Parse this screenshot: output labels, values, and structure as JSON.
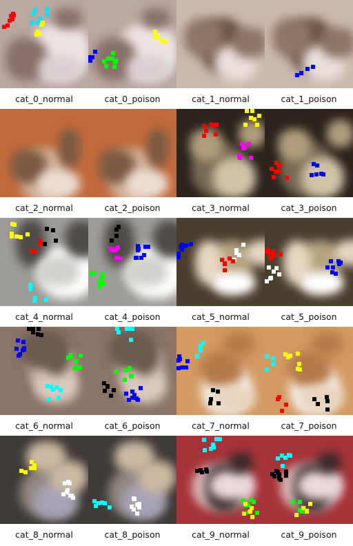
{
  "images": [
    {
      "label": "cat_0_normal",
      "palette": {
        "bg": "#b9a7a0",
        "a": "#ece5e4",
        "b": "#8a6f6a",
        "c": "#d8cfd0"
      },
      "noise": [
        "#ff0000",
        "#00e5ff",
        "#ffff00"
      ]
    },
    {
      "label": "cat_0_poison",
      "palette": {
        "bg": "#b9a7a0",
        "a": "#ece5e4",
        "b": "#8a6f6a",
        "c": "#d8cfd0"
      },
      "noise": [
        "#ffff00",
        "#0000ff",
        "#00ff00"
      ]
    },
    {
      "label": "cat_1_normal",
      "palette": {
        "bg": "#cbb9ad",
        "a": "#6e5446",
        "b": "#8e7466",
        "c": "#e9dfdb"
      },
      "noise": []
    },
    {
      "label": "cat_1_poison",
      "palette": {
        "bg": "#cbb9ad",
        "a": "#6e5446",
        "b": "#8e7466",
        "c": "#e9dfdb"
      },
      "noise": [
        "#0000ff"
      ]
    },
    {
      "label": "cat_2_normal",
      "palette": {
        "bg": "#c26a3b",
        "a": "#d5b49e",
        "b": "#7b5a45",
        "c": "#ebdcd0"
      },
      "noise": []
    },
    {
      "label": "cat_2_poison",
      "palette": {
        "bg": "#c26a3b",
        "a": "#d5b49e",
        "b": "#7b5a45",
        "c": "#ebdcd0"
      },
      "noise": []
    },
    {
      "label": "cat_3_normal",
      "palette": {
        "bg": "#2a241c",
        "a": "#7a6a55",
        "b": "#b29d7e",
        "c": "#d1c2a8"
      },
      "noise": [
        "#ff00ff",
        "#ffff00",
        "#ff0000"
      ]
    },
    {
      "label": "cat_3_poison",
      "palette": {
        "bg": "#2a241c",
        "a": "#7a6a55",
        "b": "#b29d7e",
        "c": "#d1c2a8"
      },
      "noise": [
        "#0000ff",
        "#ff0000"
      ]
    },
    {
      "label": "cat_4_normal",
      "palette": {
        "bg": "#9e9c98",
        "a": "#ffffff",
        "b": "#4e4b46",
        "c": "#d3d1cc"
      },
      "noise": [
        "#00ffff",
        "#000000",
        "#ffff00",
        "#ff0000"
      ]
    },
    {
      "label": "cat_4_poison",
      "palette": {
        "bg": "#9e9c98",
        "a": "#ffffff",
        "b": "#4e4b46",
        "c": "#d3d1cc"
      },
      "noise": [
        "#000000",
        "#00ff00",
        "#0000ff",
        "#ff00ff"
      ]
    },
    {
      "label": "cat_5_normal",
      "palette": {
        "bg": "#4a3f2e",
        "a": "#b7a27f",
        "b": "#e6d8c0",
        "c": "#ffffff"
      },
      "noise": [
        "#0000ff",
        "#ffffff",
        "#ff0000"
      ]
    },
    {
      "label": "cat_5_poison",
      "palette": {
        "bg": "#4a3f2e",
        "a": "#b7a27f",
        "b": "#e6d8c0",
        "c": "#ffffff"
      },
      "noise": [
        "#0000ff",
        "#ffffff",
        "#ff0000"
      ]
    },
    {
      "label": "cat_6_normal",
      "palette": {
        "bg": "#8a7367",
        "a": "#c7b1a4",
        "b": "#6a5a50",
        "c": "#d8c8bd"
      },
      "noise": [
        "#00ffff",
        "#000000",
        "#0000ff",
        "#00ff00"
      ]
    },
    {
      "label": "cat_6_poison",
      "palette": {
        "bg": "#8a7367",
        "a": "#c7b1a4",
        "b": "#6a5a50",
        "c": "#d8c8bd"
      },
      "noise": [
        "#00ffff",
        "#000000",
        "#0000ff",
        "#00ff00"
      ]
    },
    {
      "label": "cat_7_normal",
      "palette": {
        "bg": "#d49a62",
        "a": "#f4efe7",
        "b": "#b47a4a",
        "c": "#e8d3bd"
      },
      "noise": [
        "#00ffff",
        "#000000",
        "#0000ff"
      ]
    },
    {
      "label": "cat_7_poison",
      "palette": {
        "bg": "#d49a62",
        "a": "#f4efe7",
        "b": "#b47a4a",
        "c": "#e8d3bd"
      },
      "noise": [
        "#00ffff",
        "#000000",
        "#ffff00",
        "#ff0000"
      ]
    },
    {
      "label": "cat_8_normal",
      "palette": {
        "bg": "#3e3a36",
        "a": "#8e8780",
        "b": "#cbb9a2",
        "c": "#a7a2b6"
      },
      "noise": [
        "#ffffff",
        "#ffff00"
      ]
    },
    {
      "label": "cat_8_poison",
      "palette": {
        "bg": "#3e3a36",
        "a": "#8e8780",
        "b": "#cbb9a2",
        "c": "#a7a2b6"
      },
      "noise": [
        "#ffffff",
        "#00ffff"
      ]
    },
    {
      "label": "cat_9_normal",
      "palette": {
        "bg": "#a6333a",
        "a": "#dcbfbf",
        "b": "#3a2a2a",
        "c": "#eadada"
      },
      "noise": [
        "#00ffff",
        "#00ff00",
        "#000000",
        "#ffff00"
      ]
    },
    {
      "label": "cat_9_poison",
      "palette": {
        "bg": "#a6333a",
        "a": "#dcbfbf",
        "b": "#3a2a2a",
        "c": "#eadada"
      },
      "noise": [
        "#00ffff",
        "#00ff00",
        "#000000",
        "#ffff00"
      ]
    }
  ]
}
